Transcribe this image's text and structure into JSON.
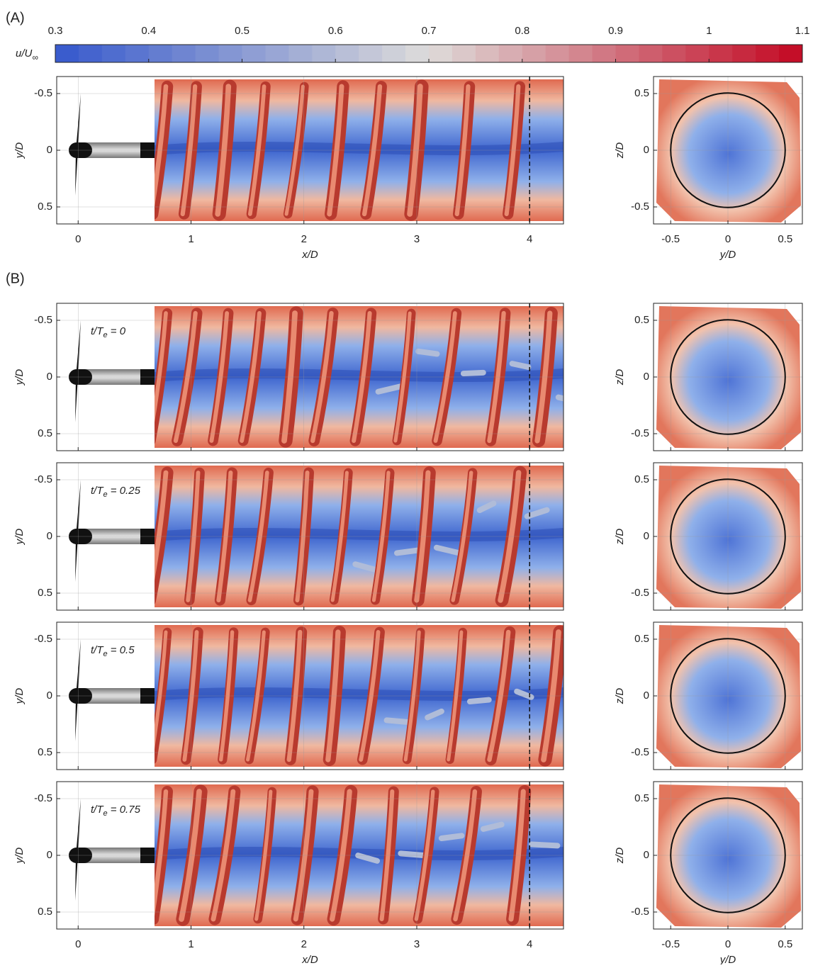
{
  "panel_labels": [
    "(A)",
    "(B)"
  ],
  "colorbar": {
    "label": {
      "main": "u/U",
      "sub": "∞"
    },
    "range": [
      0.3,
      1.1
    ],
    "ticks": [
      0.3,
      0.4,
      0.5,
      0.6,
      0.7,
      0.8,
      0.9,
      1,
      1.1
    ]
  },
  "axes": {
    "x_label": "x/D",
    "y_label": "y/D",
    "z_label": "z/D",
    "cross_x_label": "y/D",
    "xlim": [
      -0.19,
      4.3
    ],
    "xticks": [
      0,
      1,
      2,
      3,
      4
    ],
    "ylim": [
      -0.65,
      0.65
    ],
    "yticks": [
      -0.5,
      0,
      0.5
    ],
    "cross_xlim": [
      -0.65,
      0.65
    ],
    "cross_xticks": [
      -0.5,
      0,
      0.5
    ],
    "zlim": [
      -0.65,
      0.65
    ],
    "zticks": [
      -0.5,
      0,
      0.5
    ]
  },
  "panels": [
    {
      "time_label": null
    },
    {
      "time_label": {
        "prefix": "t/T",
        "sub": "e",
        "suffix": " = 0"
      }
    },
    {
      "time_label": {
        "prefix": "t/T",
        "sub": "e",
        "suffix": " = 0.25"
      }
    },
    {
      "time_label": {
        "prefix": "t/T",
        "sub": "e",
        "suffix": " = 0.5"
      }
    },
    {
      "time_label": {
        "prefix": "t/T",
        "sub": "e",
        "suffix": " = 0.75"
      }
    }
  ]
}
